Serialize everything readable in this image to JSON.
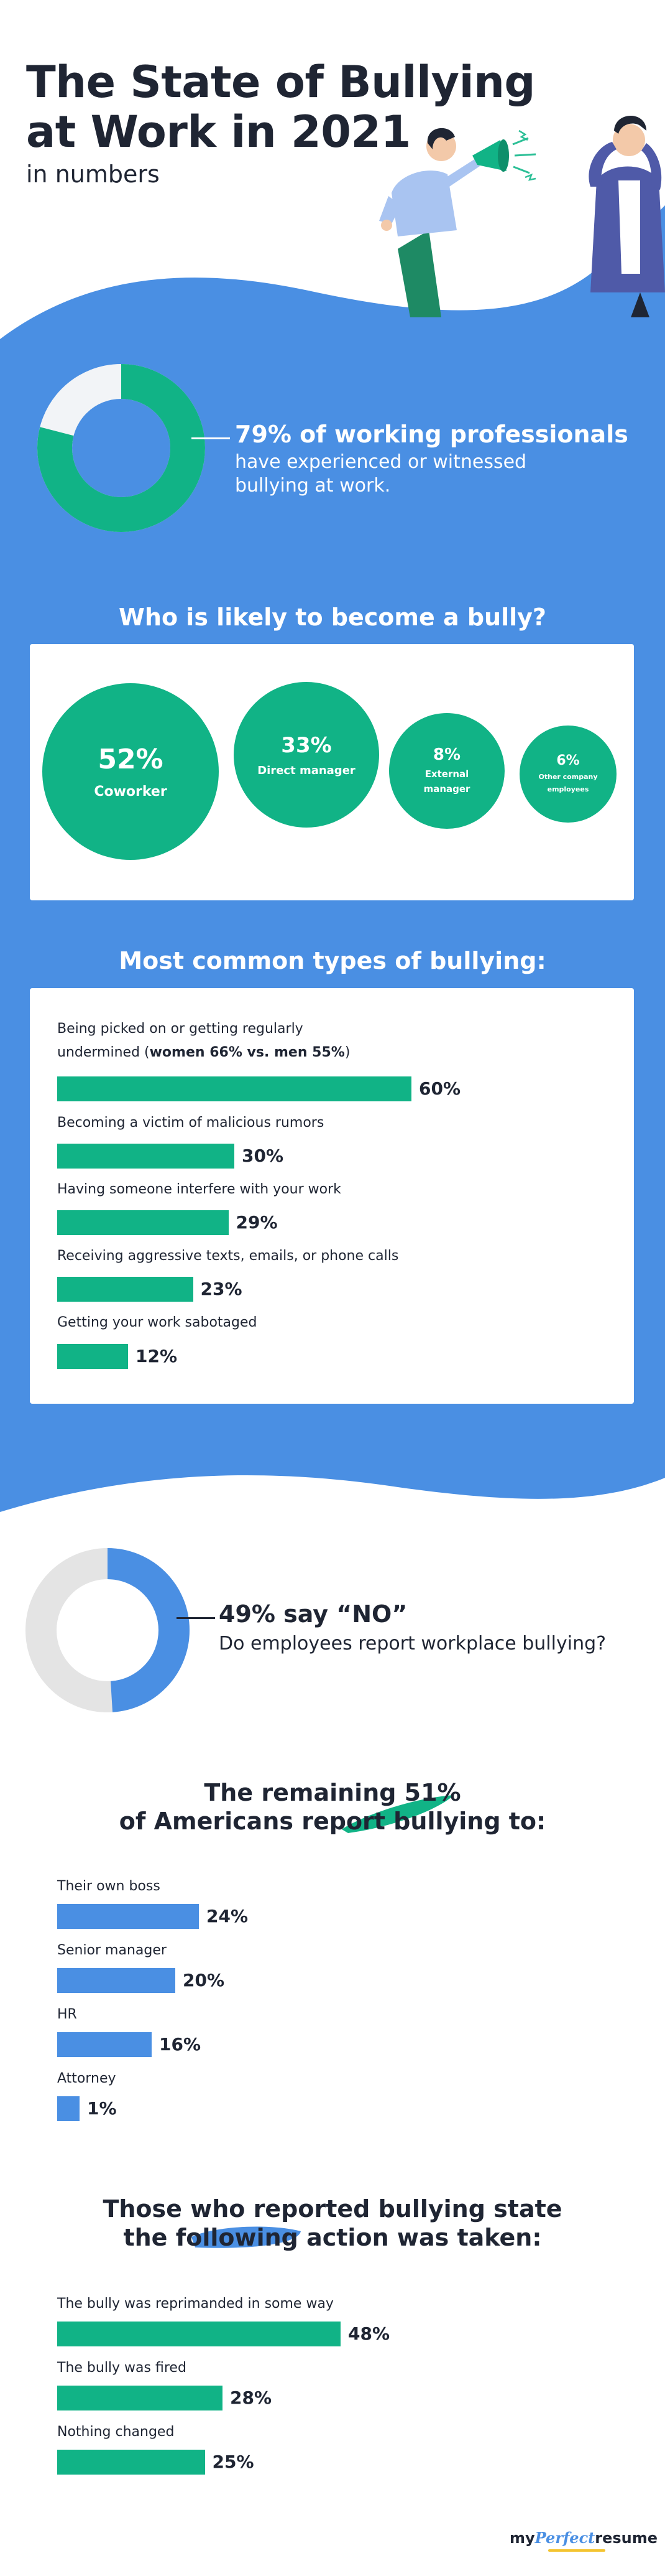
{
  "header": {
    "title_line1": "The State of Bullying",
    "title_line2": "at Work in 2021",
    "subtitle": "in numbers"
  },
  "colors": {
    "blue": "#4a8fe3",
    "green": "#11b386",
    "dark": "#1f2533",
    "light_gray": "#e4e4e4"
  },
  "stat_experienced": {
    "value_pct": 79,
    "headline": "79% of working professionals",
    "text": "have experienced or witnessed bullying at work."
  },
  "bully_section": {
    "heading": "Who is likely to become a bully?",
    "items": [
      {
        "pct": "52%",
        "label": "Coworker"
      },
      {
        "pct": "33%",
        "label": "Direct manager"
      },
      {
        "pct": "8%",
        "label": "External manager"
      },
      {
        "pct": "6%",
        "label": "Other company employees"
      }
    ]
  },
  "types_section": {
    "heading": "Most common types of bullying:",
    "label1_line1": "Being picked on or getting regularly",
    "label1_line2_pre": "undermined (",
    "label1_line2_bold": "women 66% vs. men 55%",
    "label1_line2_post": ")"
  },
  "stat_report": {
    "value_pct": 49,
    "headline": "49% say “NO”",
    "text": "Do employees report workplace bullying?"
  },
  "report_section": {
    "heading_line1": "The remaining 51%",
    "heading_line2": "of Americans report bullying to:"
  },
  "action_section": {
    "heading_line1": "Those who reported bullying state",
    "heading_line2": "the following action was taken:"
  },
  "logo": {
    "part1": "my",
    "part2": "Perfect",
    "part3": "resume"
  },
  "chart_data": [
    {
      "type": "pie",
      "categories": [
        "Experienced or witnessed bullying",
        "Other"
      ],
      "values": [
        79,
        21
      ]
    },
    {
      "type": "bar",
      "title": "Who is likely to become a bully?",
      "categories": [
        "Coworker",
        "Direct manager",
        "External manager",
        "Other company employees"
      ],
      "values": [
        52,
        33,
        8,
        6
      ]
    },
    {
      "type": "bar",
      "title": "Most common types of bullying:",
      "categories": [
        "Being picked on or getting regularly undermined (women 66% vs. men 55%)",
        "Becoming a victim of malicious rumors",
        "Having someone interfere with your work",
        "Receiving aggressive texts, emails, or phone calls",
        "Getting your work sabotaged"
      ],
      "values": [
        60,
        30,
        29,
        23,
        12
      ],
      "value_labels": [
        "60%",
        "30%",
        "29%",
        "23%",
        "12%"
      ]
    },
    {
      "type": "pie",
      "categories": [
        "NO",
        "Other"
      ],
      "values": [
        49,
        51
      ]
    },
    {
      "type": "bar",
      "title": "The remaining 51% of Americans report bullying to:",
      "categories": [
        "Their own boss",
        "Senior manager",
        "HR",
        "Attorney"
      ],
      "values": [
        24,
        20,
        16,
        1
      ],
      "value_labels": [
        "24%",
        "20%",
        "16%",
        "1%"
      ]
    },
    {
      "type": "bar",
      "title": "Those who reported bullying state the following action was taken:",
      "categories": [
        "The bully was reprimanded in some way",
        "The bully was fired",
        "Nothing changed"
      ],
      "values": [
        48,
        28,
        25
      ],
      "value_labels": [
        "48%",
        "28%",
        "25%"
      ]
    }
  ]
}
